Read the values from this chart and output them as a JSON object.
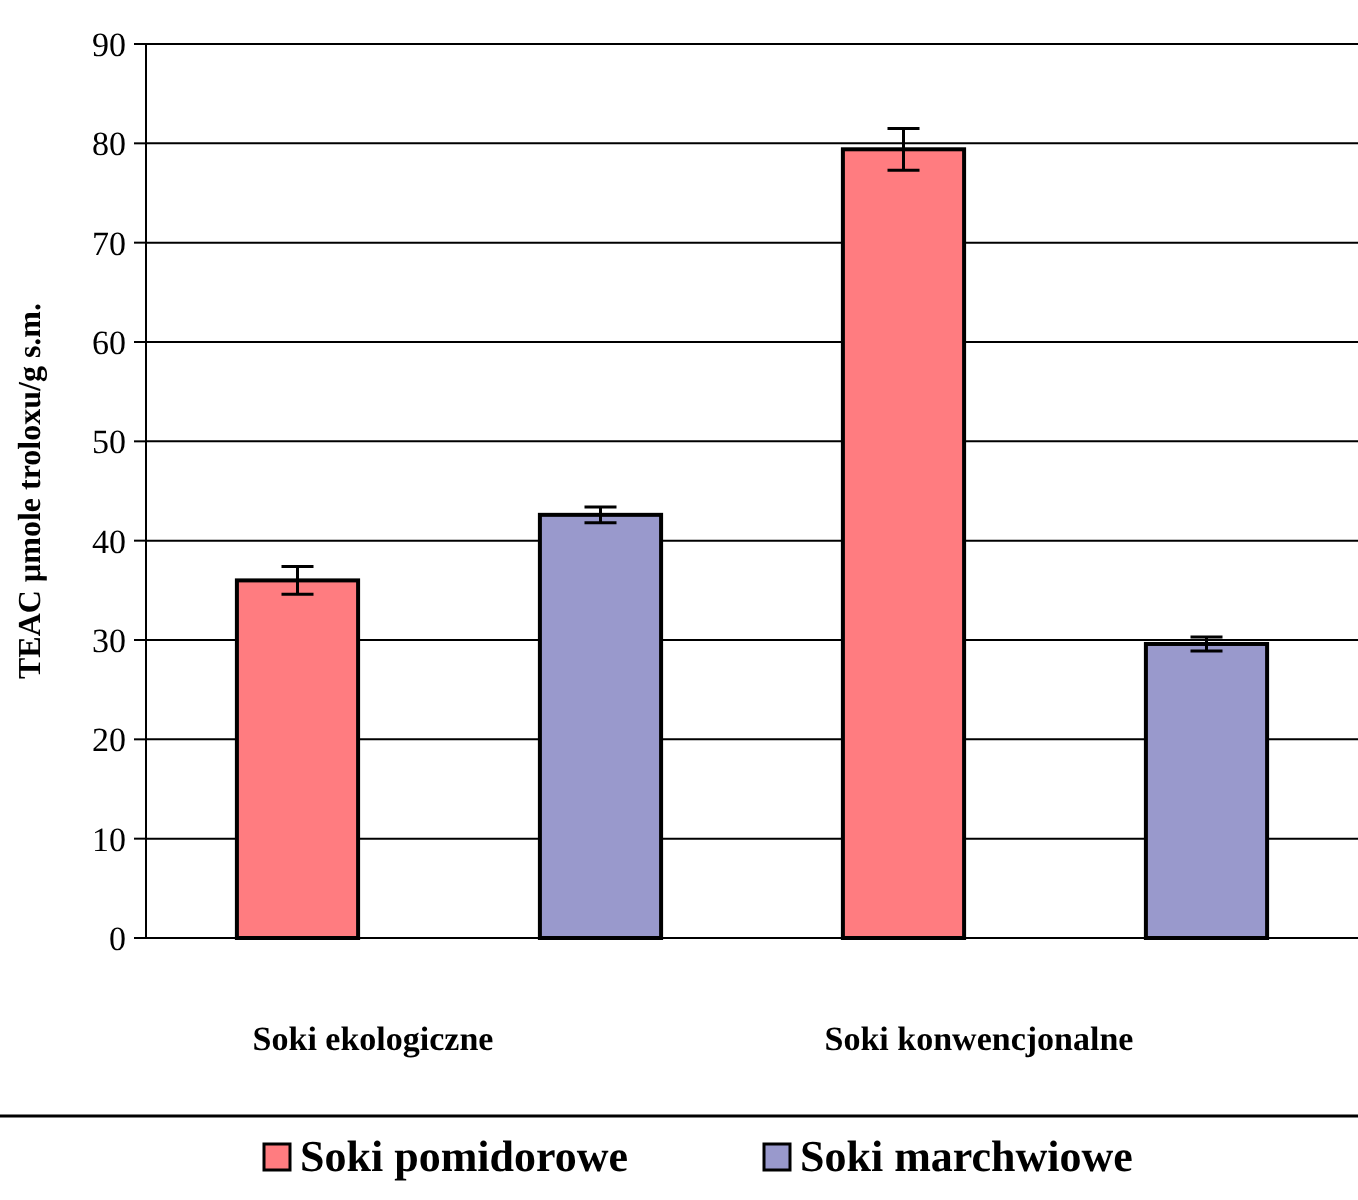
{
  "chart_data": {
    "type": "bar",
    "ylabel": "TEAC µmole troloxu/g s.m.",
    "categories": [
      "Soki ekologiczne",
      "Soki konwencjonalne"
    ],
    "series": [
      {
        "name": "Soki pomidorowe",
        "color": "#ff7c80",
        "values": [
          36.0,
          79.4
        ],
        "errors": [
          1.4,
          2.1
        ]
      },
      {
        "name": "Soki marchwiowe",
        "color": "#9999cc",
        "values": [
          42.6,
          29.6
        ],
        "errors": [
          0.8,
          0.7
        ]
      }
    ],
    "ylim": [
      0,
      90
    ],
    "yticks": [
      0,
      10,
      20,
      30,
      40,
      50,
      60,
      70,
      80,
      90
    ],
    "grid": "y",
    "legend": "bottom"
  }
}
